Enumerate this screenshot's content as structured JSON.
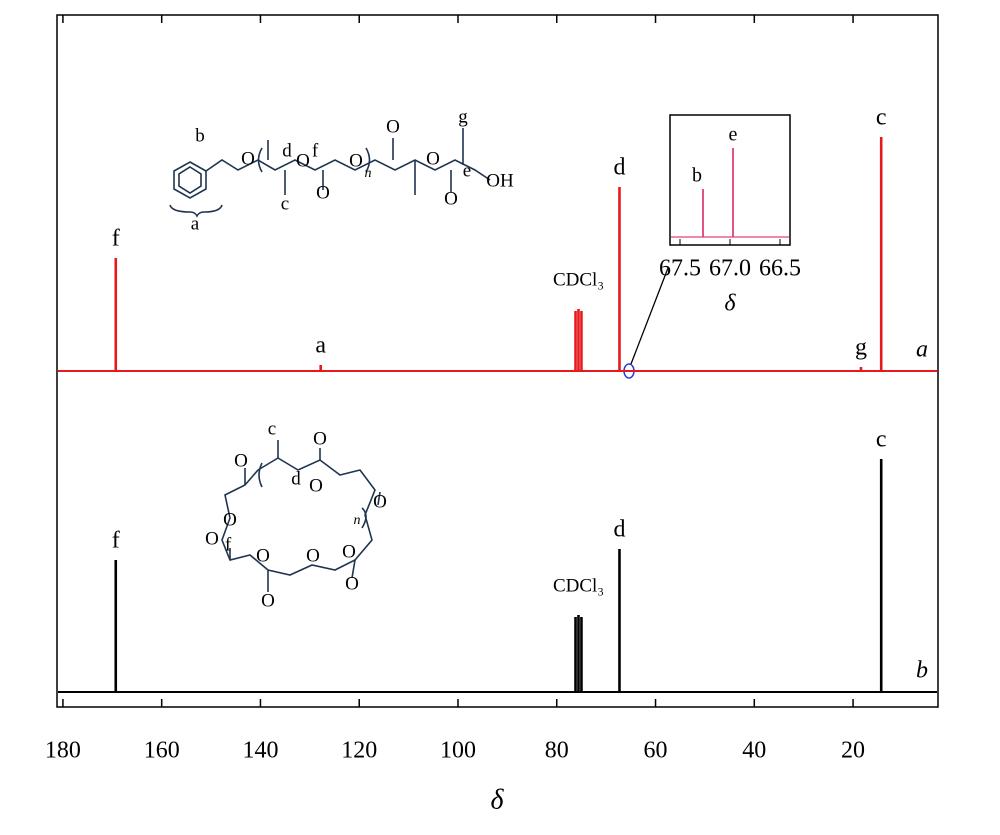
{
  "chart_data": {
    "type": "spectrum",
    "xlabel": "δ",
    "xlim": [
      181.2,
      2.8
    ],
    "xticks": [
      180,
      160,
      140,
      120,
      100,
      80,
      60,
      40,
      20
    ],
    "ylim": [
      0,
      260
    ],
    "series": [
      {
        "name": "a",
        "color": "#e8191c",
        "x": [
          169.3,
          127.8,
          76.2,
          75.6,
          75.0,
          67.3,
          18.4,
          14.3
        ],
        "values": [
          113,
          6,
          60,
          62,
          60,
          184,
          4,
          234
        ],
        "peak_labels": [
          "f",
          "a",
          null,
          "CDCl₃",
          null,
          "d",
          "g",
          "c"
        ]
      },
      {
        "name": "b",
        "color": "#000000",
        "x": [
          169.3,
          76.2,
          75.6,
          75.0,
          67.3,
          14.3
        ],
        "values": [
          132,
          75,
          77,
          75,
          143,
          233
        ],
        "peak_labels": [
          "f",
          null,
          "CDCl₃",
          null,
          "d",
          "c"
        ]
      }
    ],
    "inset": {
      "xlabel": "δ",
      "xlim": [
        67.6,
        66.4
      ],
      "ylim": [
        0,
        100
      ],
      "xticks": [
        67.5,
        {
          "value": 67.0,
          "label": "67.0"
        },
        66.5
      ],
      "color": "#e0407a",
      "x": [
        67.27,
        66.97
      ],
      "values": [
        48,
        89
      ],
      "peak_labels": [
        "b",
        "e"
      ]
    },
    "structures": [
      {
        "labels": [
          "b",
          "O",
          "d",
          "O",
          "f",
          "O",
          "c",
          "O",
          "n",
          "O",
          "O",
          "g",
          "e",
          "OH",
          "O",
          "a"
        ]
      },
      {
        "labels": [
          "c",
          "O",
          "O",
          "d",
          "O",
          "O",
          "n",
          "O",
          "O",
          "f",
          "O",
          "O",
          "O",
          "O",
          "O"
        ]
      }
    ]
  }
}
